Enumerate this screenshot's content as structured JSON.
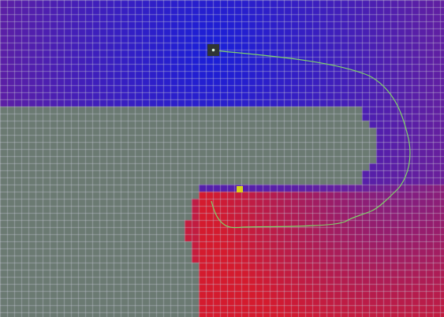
{
  "scene": {
    "type": "grid-planning-visualization",
    "colors": {
      "obstacle": "#6b7a72",
      "near_start": "#1a1fd8",
      "far_start": "#d41b2e",
      "mid_region": "#6a1f9a",
      "grid_line": "#c8c8d8",
      "path_line": "#7fd36a",
      "start_marker_bg": "#2f3535",
      "start_marker_dot": "#d8efe0",
      "goal_marker": "#d8d21a"
    },
    "icons": {
      "start": "start-node-icon",
      "goal": "goal-node-icon"
    }
  }
}
